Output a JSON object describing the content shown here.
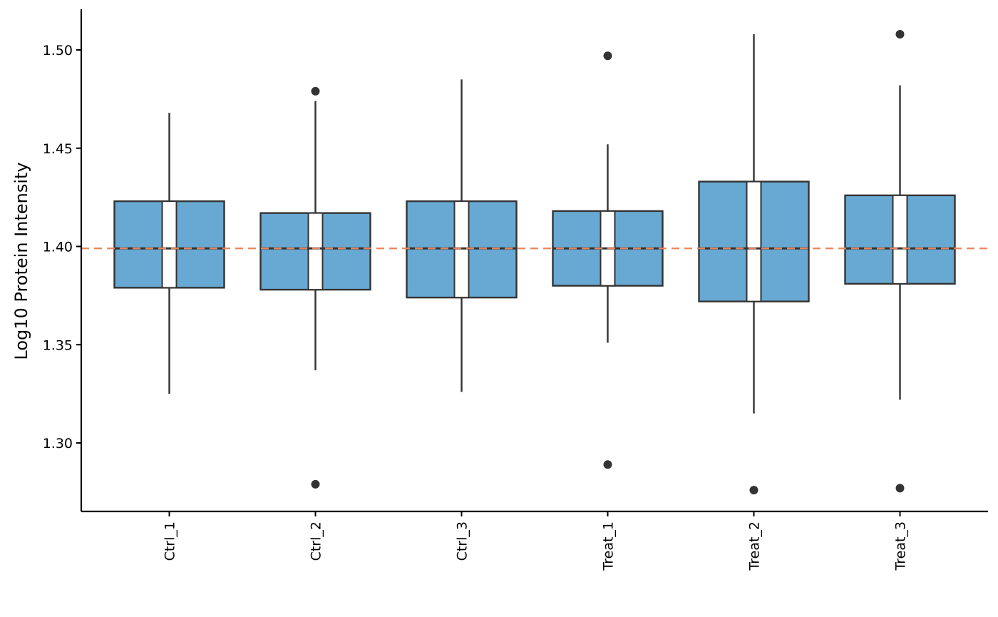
{
  "chart_data": {
    "type": "box",
    "title": "",
    "xlabel": "",
    "ylabel": "Log10 Protein Intensity",
    "ylim": [
      1.265,
      1.52
    ],
    "y_ticks": [
      1.3,
      1.35,
      1.4,
      1.45,
      1.5
    ],
    "y_tick_labels": [
      "1.30",
      "1.35",
      "1.40",
      "1.45",
      "1.50"
    ],
    "x_tick_rotation": "vertical",
    "grid": false,
    "legend": "none",
    "reference_line": {
      "value": 1.399,
      "style": "dashed",
      "color": "#E8855B"
    },
    "box_color": "#67A9D2",
    "line_color": "#333333",
    "categories": [
      "Ctrl_1",
      "Ctrl_2",
      "Ctrl_3",
      "Treat_1",
      "Treat_2",
      "Treat_3"
    ],
    "boxes": [
      {
        "label": "Ctrl_1",
        "whisker_low": 1.325,
        "q1": 1.379,
        "median": 1.399,
        "q3": 1.423,
        "whisker_high": 1.468,
        "outliers": []
      },
      {
        "label": "Ctrl_2",
        "whisker_low": 1.337,
        "q1": 1.378,
        "median": 1.399,
        "q3": 1.417,
        "whisker_high": 1.474,
        "outliers": [
          1.479,
          1.279
        ]
      },
      {
        "label": "Ctrl_3",
        "whisker_low": 1.326,
        "q1": 1.374,
        "median": 1.399,
        "q3": 1.423,
        "whisker_high": 1.485,
        "outliers": []
      },
      {
        "label": "Treat_1",
        "whisker_low": 1.351,
        "q1": 1.38,
        "median": 1.399,
        "q3": 1.418,
        "whisker_high": 1.452,
        "outliers": [
          1.497,
          1.289
        ]
      },
      {
        "label": "Treat_2",
        "whisker_low": 1.315,
        "q1": 1.372,
        "median": 1.399,
        "q3": 1.433,
        "whisker_high": 1.508,
        "outliers": [
          1.276
        ]
      },
      {
        "label": "Treat_3",
        "whisker_low": 1.322,
        "q1": 1.381,
        "median": 1.399,
        "q3": 1.426,
        "whisker_high": 1.482,
        "outliers": [
          1.508,
          1.277
        ]
      }
    ]
  }
}
